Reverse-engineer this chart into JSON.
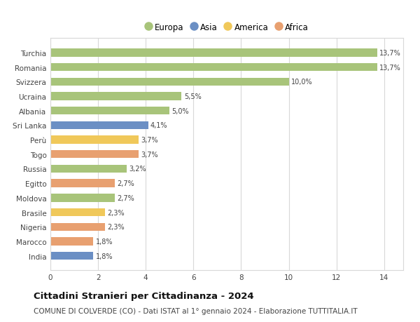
{
  "countries": [
    "Turchia",
    "Romania",
    "Svizzera",
    "Ucraina",
    "Albania",
    "Sri Lanka",
    "Perù",
    "Togo",
    "Russia",
    "Egitto",
    "Moldova",
    "Brasile",
    "Nigeria",
    "Marocco",
    "India"
  ],
  "values": [
    13.7,
    13.7,
    10.0,
    5.5,
    5.0,
    4.1,
    3.7,
    3.7,
    3.2,
    2.7,
    2.7,
    2.3,
    2.3,
    1.8,
    1.8
  ],
  "labels": [
    "13,7%",
    "13,7%",
    "10,0%",
    "5,5%",
    "5,0%",
    "4,1%",
    "3,7%",
    "3,7%",
    "3,2%",
    "2,7%",
    "2,7%",
    "2,3%",
    "2,3%",
    "1,8%",
    "1,8%"
  ],
  "continents": [
    "Europa",
    "Europa",
    "Europa",
    "Europa",
    "Europa",
    "Asia",
    "America",
    "Africa",
    "Europa",
    "Africa",
    "Europa",
    "America",
    "Africa",
    "Africa",
    "Asia"
  ],
  "continent_colors": {
    "Europa": "#a8c47a",
    "Asia": "#6b8fc4",
    "America": "#f0c85a",
    "Africa": "#e8a070"
  },
  "legend_order": [
    "Europa",
    "Asia",
    "America",
    "Africa"
  ],
  "title": "Cittadini Stranieri per Cittadinanza - 2024",
  "subtitle": "COMUNE DI COLVERDE (CO) - Dati ISTAT al 1° gennaio 2024 - Elaborazione TUTTITALIA.IT",
  "xlim": [
    0,
    14.8
  ],
  "xticks": [
    0,
    2,
    4,
    6,
    8,
    10,
    12,
    14
  ],
  "background_color": "#ffffff",
  "grid_color": "#d8d8d8",
  "bar_height": 0.55,
  "title_fontsize": 9.5,
  "subtitle_fontsize": 7.5,
  "label_fontsize": 7,
  "tick_fontsize": 7.5,
  "legend_fontsize": 8.5
}
